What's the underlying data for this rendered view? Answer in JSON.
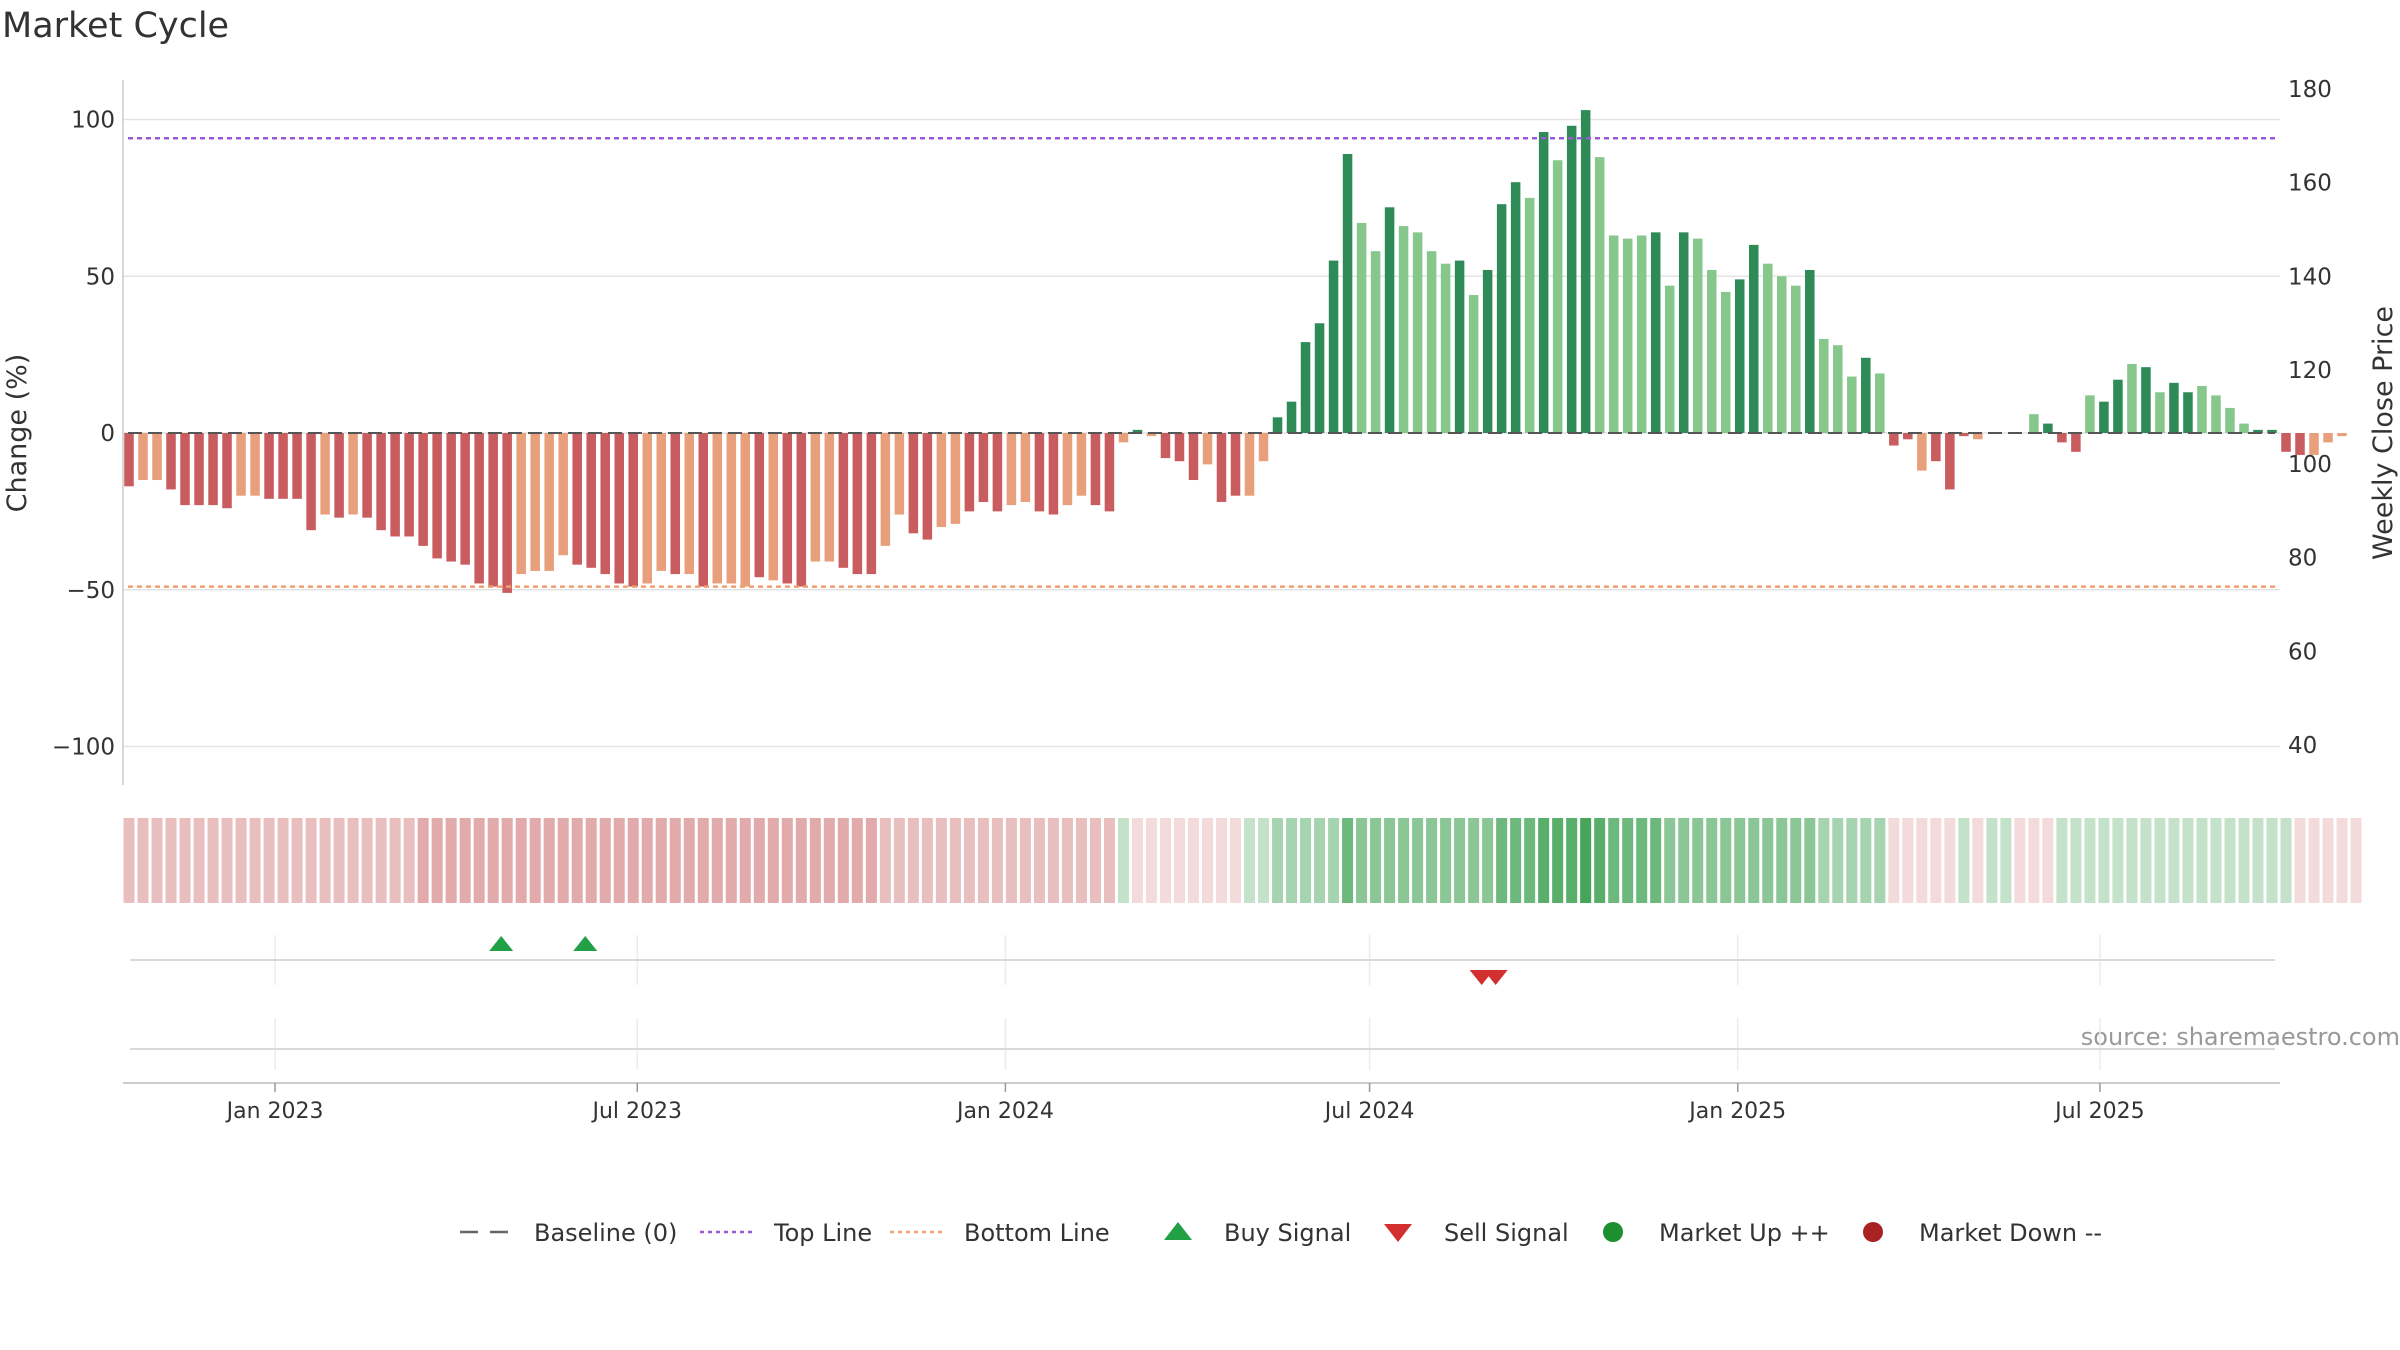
{
  "title": "Market Cycle",
  "source": "source: sharemaestro.com",
  "chart_data": {
    "type": "bar",
    "ylabel_left": "Change (%)",
    "ylabel_right": "Weekly Close Price",
    "ylim_left": [
      -105,
      110
    ],
    "ylim_right": [
      35,
      181
    ],
    "yticks_left": [
      100,
      50,
      0,
      -50,
      -100
    ],
    "yticks_left_labels": [
      "100",
      "50",
      "0",
      "−50",
      "−100"
    ],
    "yticks_right": [
      180,
      160,
      140,
      120,
      100,
      80,
      60,
      40
    ],
    "top_line": 94,
    "bottom_line": -49,
    "x_start": "2022-10-17",
    "x_end": "2025-09-29",
    "x_ticks": [
      {
        "date": "2023-01-01",
        "label": "Jan 2023"
      },
      {
        "date": "2023-07-01",
        "label": "Jul 2023"
      },
      {
        "date": "2024-01-01",
        "label": "Jan 2024"
      },
      {
        "date": "2024-07-01",
        "label": "Jul 2024"
      },
      {
        "date": "2025-01-01",
        "label": "Jan 2025"
      },
      {
        "date": "2025-07-01",
        "label": "Jul 2025"
      }
    ],
    "first_week": "2022-10-17",
    "week_step_days": 7,
    "series": [
      {
        "values": [
          -17,
          -15,
          -15,
          -18,
          -23,
          -23,
          -23,
          -24,
          -20,
          -20,
          -21,
          -21,
          -21,
          -31,
          -26,
          -27,
          -26,
          -27,
          -31,
          -33,
          -33,
          -36,
          -40,
          -41,
          -42,
          -48,
          -49,
          -51,
          -45,
          -44,
          -44,
          -39,
          -42,
          -43,
          -45,
          -48,
          -49,
          -48,
          -44,
          -45,
          -45,
          -49,
          -48,
          -48,
          -49,
          -46,
          -47,
          -48,
          -49,
          -41,
          -41,
          -43,
          -45,
          -45,
          -36,
          -26,
          -32,
          -34,
          -30,
          -29,
          -25,
          -22,
          -25,
          -23,
          -22,
          -25,
          -26,
          -23,
          -20,
          -23,
          -25,
          -3,
          1,
          -1,
          -8,
          -9,
          -15,
          -10,
          -22,
          -20,
          -20,
          -9,
          5,
          10,
          29,
          35,
          55,
          89,
          67,
          58,
          72,
          66,
          64,
          58,
          54,
          55,
          44,
          52,
          73,
          80,
          75,
          96,
          87,
          98,
          103,
          88,
          63,
          62,
          63,
          64,
          47,
          64,
          62,
          52,
          45,
          49,
          60,
          54,
          50,
          47,
          52,
          30,
          28,
          18,
          24,
          19,
          -4,
          -2,
          -12,
          -9,
          -18,
          -1,
          -2,
          0,
          0,
          0,
          6,
          3,
          -3,
          -6,
          12,
          10,
          17,
          22,
          21,
          13,
          16,
          13,
          15,
          12,
          8,
          3,
          1,
          1,
          -6,
          -7,
          -7,
          -3,
          -1
        ],
        "strong_flags": [
          1,
          0,
          0,
          1,
          1,
          1,
          1,
          1,
          0,
          0,
          1,
          1,
          1,
          1,
          0,
          1,
          0,
          1,
          1,
          1,
          1,
          1,
          1,
          1,
          1,
          1,
          1,
          1,
          0,
          0,
          0,
          0,
          1,
          1,
          1,
          1,
          1,
          0,
          0,
          1,
          0,
          1,
          0,
          0,
          0,
          1,
          0,
          1,
          1,
          0,
          0,
          1,
          1,
          1,
          0,
          0,
          1,
          1,
          0,
          0,
          1,
          1,
          1,
          0,
          0,
          1,
          1,
          0,
          0,
          1,
          1,
          0,
          1,
          0,
          1,
          1,
          1,
          0,
          1,
          1,
          0,
          0,
          1,
          1,
          1,
          1,
          1,
          1,
          0,
          0,
          1,
          0,
          0,
          0,
          0,
          1,
          0,
          1,
          1,
          1,
          0,
          1,
          0,
          1,
          1,
          0,
          0,
          0,
          0,
          1,
          0,
          1,
          0,
          0,
          0,
          1,
          1,
          0,
          0,
          0,
          1,
          0,
          0,
          0,
          1,
          0,
          1,
          1,
          0,
          1,
          1,
          1,
          0,
          0,
          0,
          1,
          0,
          1,
          1,
          1,
          0,
          1,
          1,
          0,
          1,
          0,
          1,
          1,
          0,
          0,
          0,
          0,
          1,
          1,
          1,
          1,
          0
        ]
      }
    ],
    "band_levels": [
      2,
      2,
      2,
      2,
      2,
      2,
      2,
      2,
      2,
      2,
      2,
      2,
      2,
      2,
      2,
      2,
      2,
      2,
      2,
      2,
      2,
      3,
      3,
      3,
      3,
      3,
      3,
      3,
      3,
      3,
      3,
      3,
      3,
      3,
      3,
      3,
      3,
      3,
      3,
      3,
      3,
      3,
      3,
      3,
      3,
      3,
      3,
      3,
      3,
      3,
      3,
      3,
      3,
      3,
      2,
      2,
      2,
      2,
      2,
      2,
      2,
      2,
      2,
      2,
      2,
      2,
      2,
      2,
      2,
      2,
      2,
      -1,
      1,
      1,
      1,
      1,
      1,
      1,
      1,
      1,
      -1,
      -1,
      -2,
      -2,
      -2,
      -2,
      -2,
      -4,
      -3,
      -3,
      -3,
      -3,
      -3,
      -3,
      -3,
      -3,
      -3,
      -3,
      -4,
      -4,
      -4,
      -5,
      -5,
      -5,
      -6,
      -5,
      -4,
      -4,
      -4,
      -4,
      -3,
      -3,
      -3,
      -3,
      -3,
      -3,
      -3,
      -3,
      -3,
      -3,
      -3,
      -2,
      -2,
      -2,
      -2,
      -2,
      1,
      1,
      1,
      1,
      1,
      -1,
      1,
      -1,
      -1,
      1,
      1,
      1,
      -1,
      -1,
      -1,
      -1,
      -1,
      -1,
      -1,
      -1,
      -1,
      -1,
      -1,
      -1,
      -1,
      -1,
      -1,
      -1,
      -1,
      1,
      1,
      1,
      1,
      1
    ],
    "buy_signals": [
      "2023-04-24",
      "2023-06-05"
    ],
    "sell_signals": [
      "2024-08-26",
      "2024-09-02"
    ],
    "colors": {
      "down_strong": "#c95c5e",
      "down_light": "#e8a07c",
      "up_strong": "#2e8b57",
      "up_light": "#86c78c",
      "top_line": "#9b59d8",
      "bottom_line": "#f0a070",
      "buy": "#22a046",
      "sell": "#d22f2f",
      "market_up": "#1e8f2e",
      "market_down": "#a82222"
    },
    "legend": [
      {
        "label": "Baseline (0)",
        "marker": "dashed-line"
      },
      {
        "label": "Top Line",
        "marker": "dotted-line-purple"
      },
      {
        "label": "Bottom Line",
        "marker": "dotted-line-orange"
      },
      {
        "label": "Buy Signal",
        "marker": "triangle-up"
      },
      {
        "label": "Sell Signal",
        "marker": "triangle-down"
      },
      {
        "label": "Market Up ++",
        "marker": "circle-green"
      },
      {
        "label": "Market Down --",
        "marker": "circle-red"
      }
    ]
  }
}
